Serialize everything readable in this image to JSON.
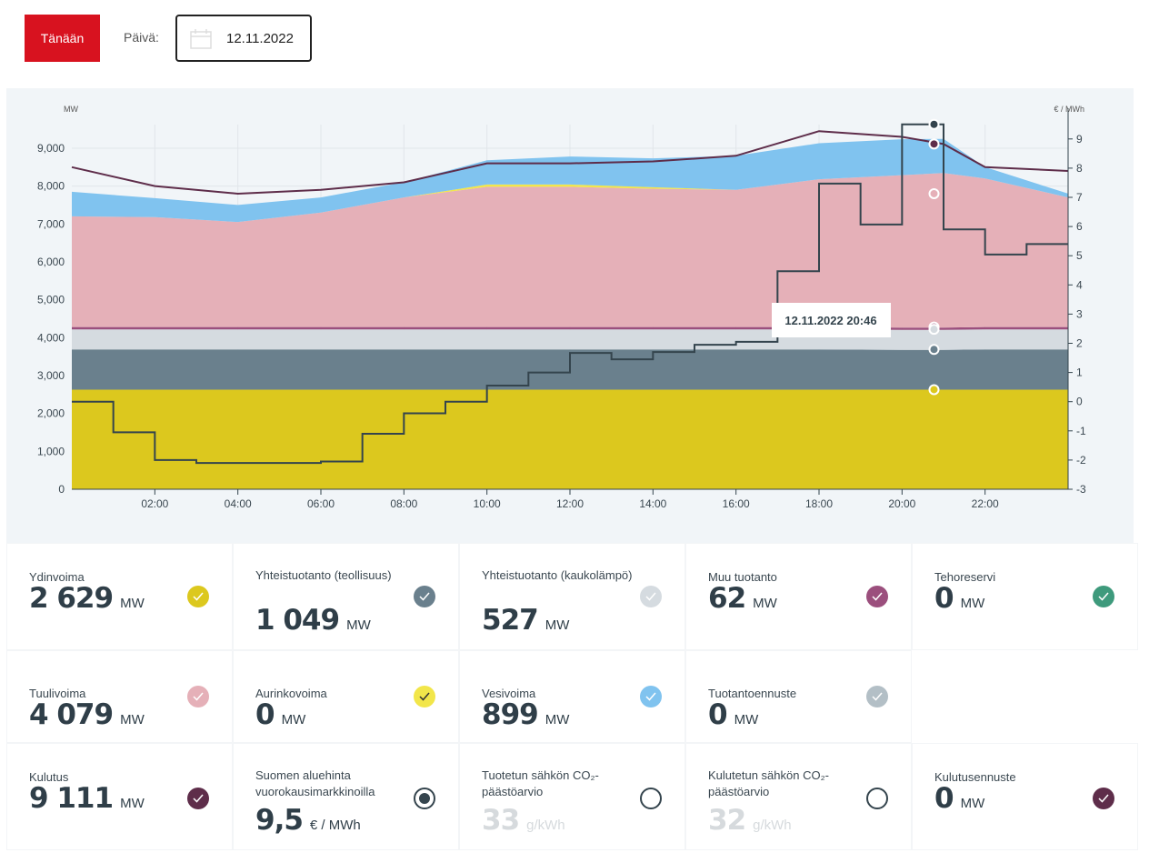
{
  "header": {
    "today_label": "Tänään",
    "date_label": "Päivä:",
    "date_value": "12.11.2022"
  },
  "chart_data": {
    "type": "area",
    "left_axis_label": "MW",
    "right_axis_label": "€ / MWh",
    "x_ticks": [
      "02:00",
      "04:00",
      "06:00",
      "08:00",
      "10:00",
      "12:00",
      "14:00",
      "16:00",
      "18:00",
      "20:00",
      "22:00"
    ],
    "y_left_ticks": [
      "0",
      "1,000",
      "2,000",
      "3,000",
      "4,000",
      "5,000",
      "6,000",
      "7,000",
      "8,000",
      "9,000"
    ],
    "y_right_ticks": [
      "-3",
      "-2",
      "-1",
      "0",
      "1",
      "2",
      "3",
      "4",
      "5",
      "6",
      "7",
      "8",
      "9"
    ],
    "ylim_left": [
      0,
      9500
    ],
    "ylim_right": [
      -3,
      9.5
    ],
    "xlim_hours": [
      0,
      24
    ],
    "hours": [
      0,
      2,
      4,
      6,
      8,
      10,
      12,
      14,
      16,
      18,
      20,
      21,
      22,
      24
    ],
    "stacked": [
      {
        "name": "Ydinvoima",
        "color": "#dcc81e",
        "values": [
          2629,
          2629,
          2629,
          2629,
          2629,
          2629,
          2629,
          2629,
          2629,
          2629,
          2629,
          2629,
          2629,
          2629
        ]
      },
      {
        "name": "Yhteistuotanto (teollisuus)",
        "color": "#6a808d",
        "values": [
          1060,
          1060,
          1060,
          1060,
          1060,
          1060,
          1060,
          1060,
          1060,
          1060,
          1049,
          1049,
          1060,
          1060
        ]
      },
      {
        "name": "Yhteistuotanto (kaukolämpö)",
        "color": "#d5dbe0",
        "values": [
          530,
          530,
          530,
          530,
          530,
          530,
          530,
          530,
          530,
          530,
          527,
          527,
          530,
          530
        ]
      },
      {
        "name": "Muu tuotanto",
        "color": "#9b4f7d",
        "values": [
          62,
          62,
          62,
          62,
          62,
          62,
          62,
          62,
          62,
          62,
          62,
          62,
          62,
          62
        ]
      },
      {
        "name": "Tuulivoima",
        "color": "#e5b0b8",
        "values": [
          2920,
          2900,
          2770,
          3020,
          3420,
          3700,
          3700,
          3650,
          3620,
          3900,
          4020,
          4079,
          3920,
          3420
        ]
      },
      {
        "name": "Aurinkovoima",
        "color": "#f2e64a",
        "values": [
          0,
          0,
          0,
          0,
          0,
          60,
          60,
          40,
          0,
          0,
          0,
          0,
          0,
          0
        ]
      },
      {
        "name": "Vesivoima",
        "color": "#80c3ef",
        "values": [
          650,
          500,
          450,
          400,
          400,
          640,
          740,
          760,
          900,
          950,
          950,
          899,
          300,
          100
        ]
      }
    ],
    "lines": [
      {
        "name": "Kulutus",
        "color": "#5e2d4a",
        "axis": "left",
        "values": [
          8500,
          8000,
          7800,
          7900,
          8100,
          8600,
          8600,
          8650,
          8800,
          9450,
          9300,
          9111,
          8500,
          8400
        ]
      },
      {
        "name": "Suomen aluehinta vuorokausimarkkinoilla",
        "color": "#34444d",
        "axis": "right",
        "type": "step",
        "hourly": [
          0,
          -1.05,
          -2.0,
          -2.1,
          -2.1,
          -2.1,
          -2.05,
          -1.1,
          -0.4,
          0,
          0.55,
          1.0,
          1.67,
          1.45,
          1.7,
          1.95,
          2.05,
          4.47,
          7.47,
          6.07,
          9.5,
          5.9,
          5.04,
          5.4
        ]
      }
    ],
    "tooltip": "12.11.2022 20:46",
    "tooltip_hour": 20.77
  },
  "cards": [
    {
      "label": "Ydinvoima",
      "value": "2 629",
      "unit": "MW",
      "color": "#dcc81e",
      "state": "checked"
    },
    {
      "label": "Yhteistuotanto (teollisuus)",
      "value": "1 049",
      "unit": "MW",
      "color": "#6a808d",
      "state": "checked"
    },
    {
      "label": "Yhteistuotanto (kaukolämpö)",
      "value": "527",
      "unit": "MW",
      "color": "#d5dbe0",
      "state": "checked"
    },
    {
      "label": "Muu tuotanto",
      "value": "62",
      "unit": "MW",
      "color": "#9b4f7d",
      "state": "checked"
    },
    {
      "label": "Tehoreservi",
      "value": "0",
      "unit": "MW",
      "color": "#3e9a7c",
      "state": "checked"
    },
    {
      "label": "Tuulivoima",
      "value": "4 079",
      "unit": "MW",
      "color": "#e5b0b8",
      "state": "checked"
    },
    {
      "label": "Aurinkovoima",
      "value": "0",
      "unit": "MW",
      "color": "#f2e64a",
      "state": "checked"
    },
    {
      "label": "Vesivoima",
      "value": "899",
      "unit": "MW",
      "color": "#80c3ef",
      "state": "checked"
    },
    {
      "label": "Tuotantoennuste",
      "value": "0",
      "unit": "MW",
      "color": "#b3bfc6",
      "state": "checked"
    },
    null,
    {
      "label": "Kulutus",
      "value": "9 111",
      "unit": "MW",
      "color": "#5e2d4a",
      "state": "checked"
    },
    {
      "label": "Suomen aluehinta vuorokausimarkkinoilla",
      "value": "9,5",
      "unit": "€ / MWh",
      "color": "#34444d",
      "state": "radio-on"
    },
    {
      "label": "Tuotetun sähkön CO₂-päästöarvio",
      "value": "33",
      "unit": "g/kWh",
      "color": "#34444d",
      "state": "radio-off",
      "dim": true
    },
    {
      "label": "Kulutetun sähkön CO₂-päästöarvio",
      "value": "32",
      "unit": "g/kWh",
      "color": "#34444d",
      "state": "radio-off",
      "dim": true
    },
    {
      "label": "Kulutusennuste",
      "value": "0",
      "unit": "MW",
      "color": "#5e2d4a",
      "state": "checked"
    }
  ]
}
